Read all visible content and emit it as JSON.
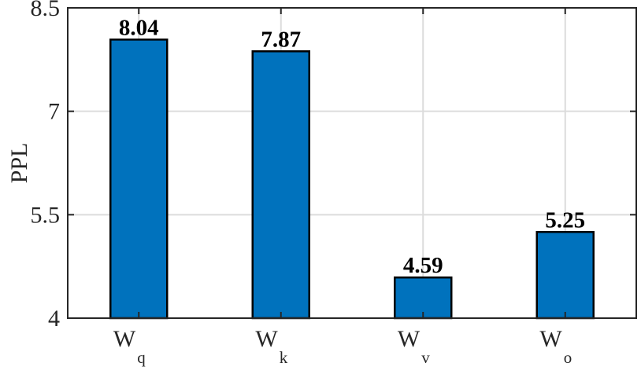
{
  "chart_data": {
    "type": "bar",
    "categories": [
      {
        "main": "W",
        "sub": "q"
      },
      {
        "main": "W",
        "sub": "k"
      },
      {
        "main": "W",
        "sub": "v"
      },
      {
        "main": "W",
        "sub": "o"
      }
    ],
    "values": [
      8.04,
      7.87,
      4.59,
      5.25
    ],
    "data_labels": [
      "8.04",
      "7.87",
      "4.59",
      "5.25"
    ],
    "ylabel": "PPL",
    "xlabel": "",
    "title": "",
    "ylim": [
      4,
      8.5
    ],
    "yticks": [
      4,
      5.5,
      7,
      8.5
    ],
    "ytick_labels": [
      "4",
      "5.5",
      "7",
      "8.5"
    ],
    "grid": true,
    "colors": {
      "bar": "#0072BD",
      "bar_edge": "#000000",
      "grid": "#dcdcdc",
      "axis": "#262626"
    }
  }
}
